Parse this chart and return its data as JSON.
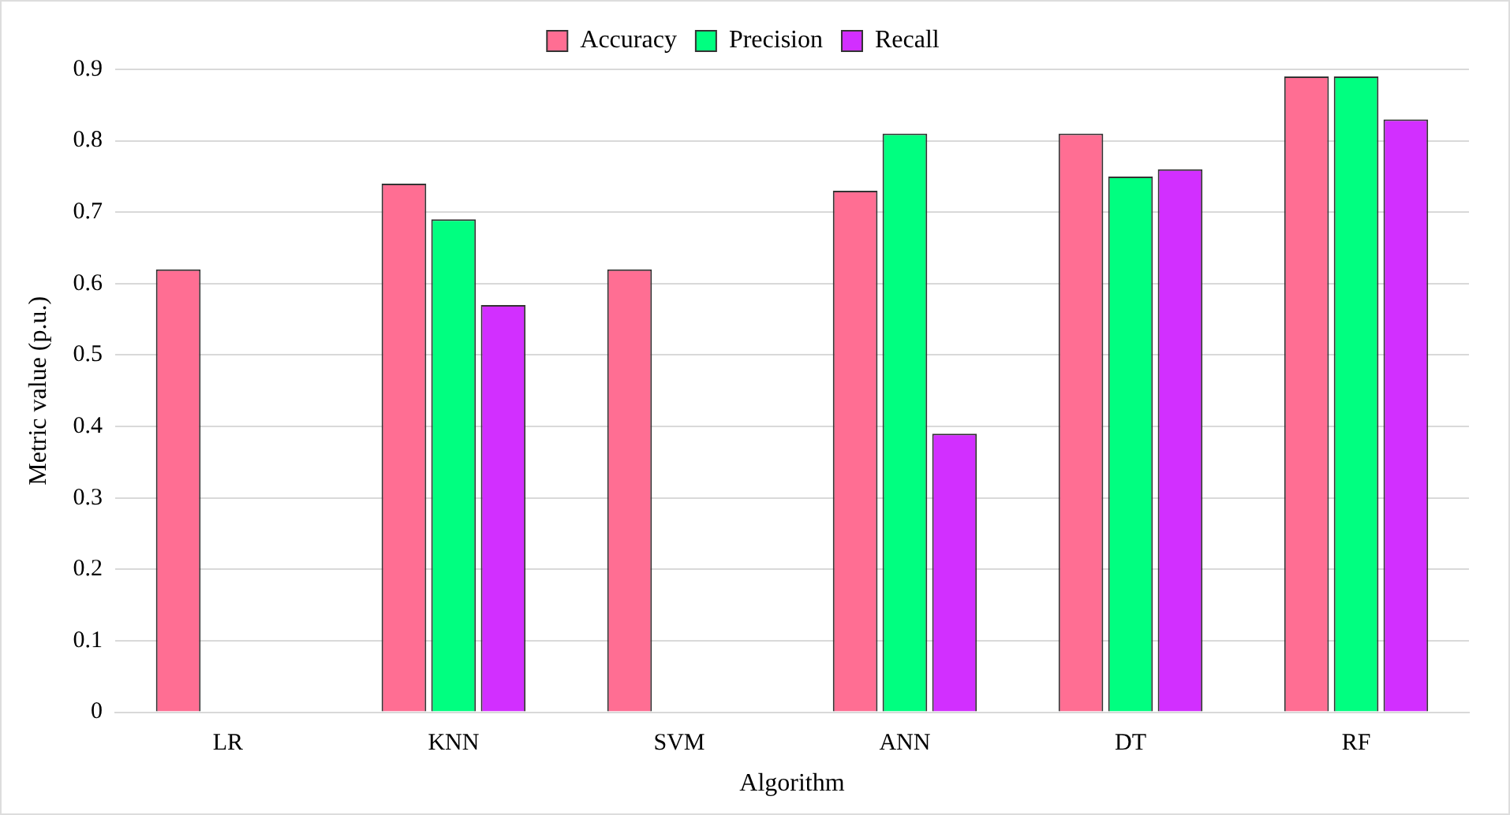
{
  "chart_data": {
    "type": "bar",
    "xlabel": "Algorithm",
    "ylabel": "Metric value (p.u.)",
    "categories": [
      "LR",
      "KNN",
      "SVM",
      "ANN",
      "DT",
      "RF"
    ],
    "series": [
      {
        "name": "Accuracy",
        "color": "#ff6e93",
        "values": [
          0.62,
          0.74,
          0.62,
          0.73,
          0.81,
          0.89
        ]
      },
      {
        "name": "Precision",
        "color": "#00ff80",
        "values": [
          null,
          0.69,
          null,
          0.81,
          0.75,
          0.89
        ]
      },
      {
        "name": "Recall",
        "color": "#d22fff",
        "values": [
          null,
          0.57,
          null,
          0.39,
          0.76,
          0.83
        ]
      }
    ],
    "ylim": [
      0,
      0.9
    ],
    "yticks": [
      0,
      0.1,
      0.2,
      0.3,
      0.4,
      0.5,
      0.6,
      0.7,
      0.8,
      0.9
    ],
    "grid": "y",
    "legend": "top"
  }
}
